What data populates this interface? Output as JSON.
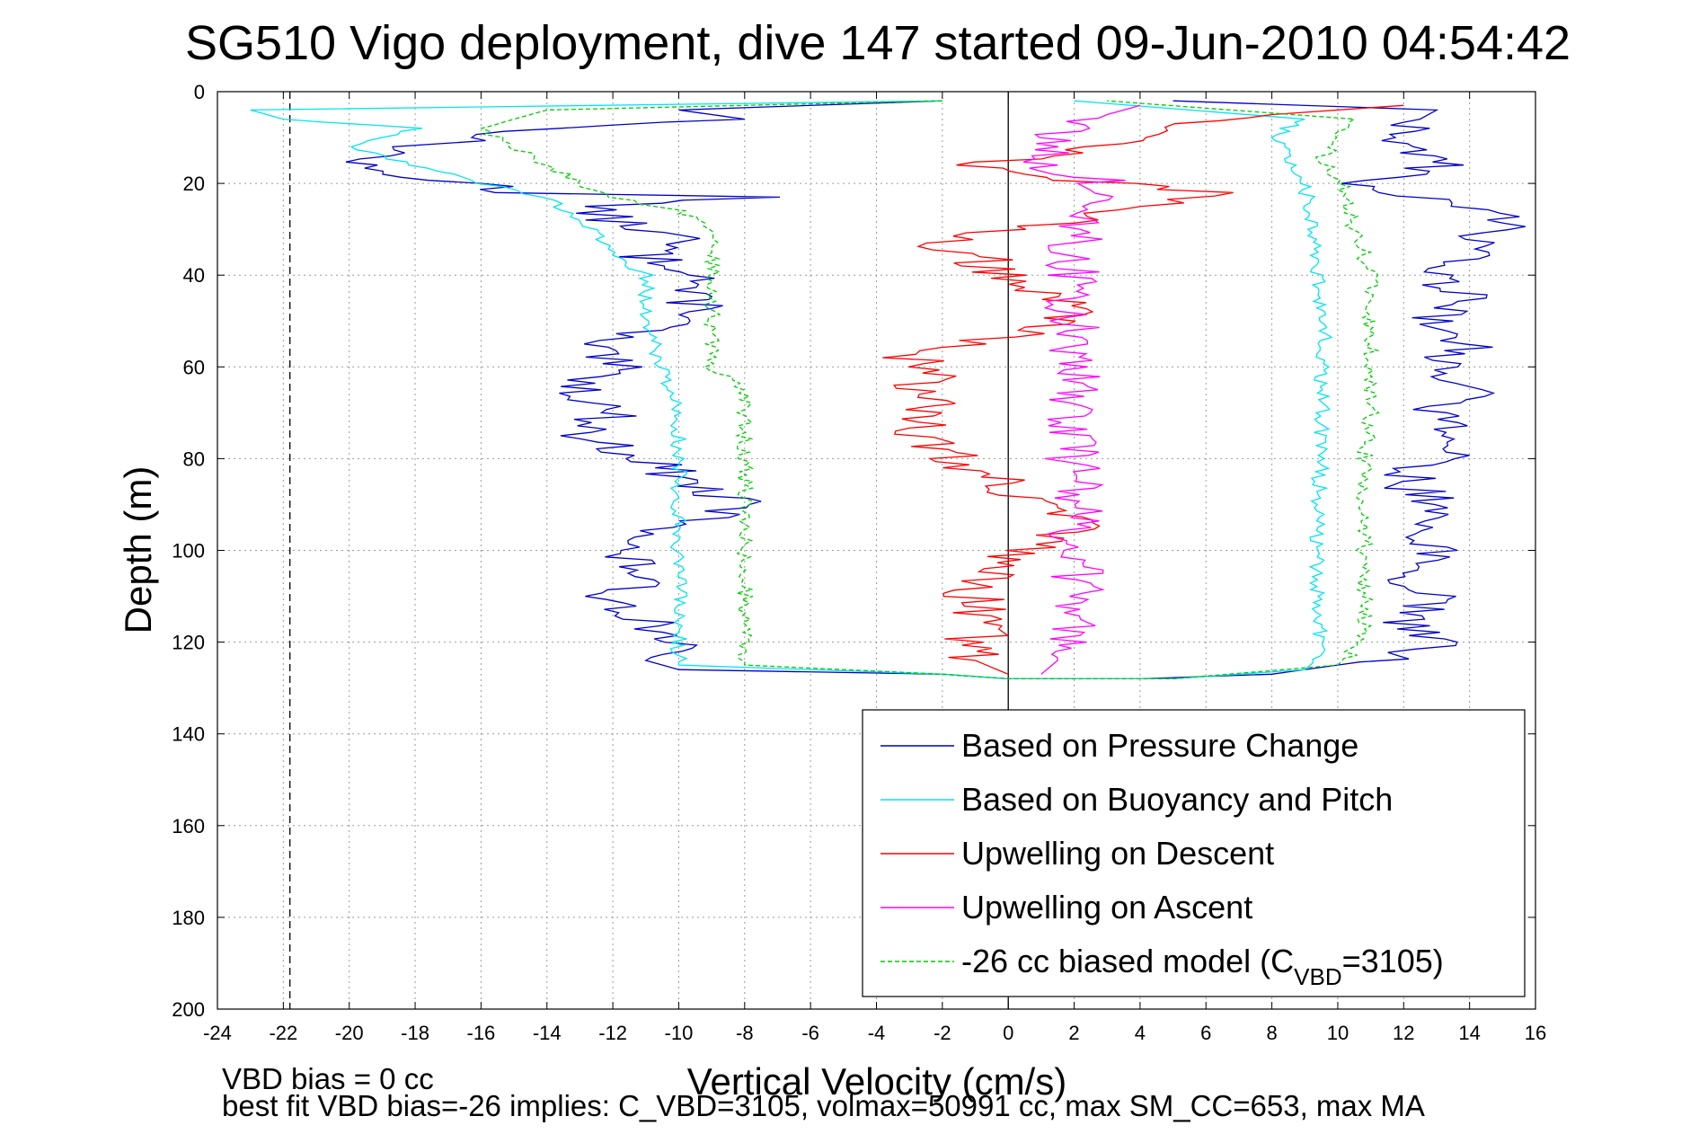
{
  "chart_data": {
    "type": "line",
    "title": "SG510 Vigo deployment, dive 147 started 09-Jun-2010 04:54:42",
    "xlabel": "Vertical Velocity (cm/s)",
    "ylabel": "Depth (m)",
    "xlim": [
      -24,
      16
    ],
    "ylim": [
      0,
      200
    ],
    "y_reversed": true,
    "xticks": [
      "-24",
      "-22",
      "-20",
      "-18",
      "-16",
      "-14",
      "-12",
      "-10",
      "-8",
      "-6",
      "-4",
      "-2",
      "0",
      "2",
      "4",
      "6",
      "8",
      "10",
      "12",
      "14",
      "16"
    ],
    "yticks": [
      "0",
      "20",
      "40",
      "60",
      "80",
      "100",
      "120",
      "140",
      "160",
      "180",
      "200"
    ],
    "grid": true,
    "legend_position": "bottom-right",
    "reference_lines": [
      {
        "orientation": "vertical",
        "x": 0,
        "color": "#000000",
        "style": "solid"
      },
      {
        "orientation": "vertical",
        "x": -21.8,
        "color": "#000000",
        "style": "dashed"
      }
    ],
    "series": [
      {
        "name": "Based on Pressure Change",
        "color": "#0000cc",
        "style": "solid",
        "points": [
          [
            -2,
            2
          ],
          [
            -10,
            4
          ],
          [
            -8,
            6
          ],
          [
            -14,
            8
          ],
          [
            -18,
            12
          ],
          [
            -20,
            16
          ],
          [
            -19,
            18
          ],
          [
            -16,
            20
          ],
          [
            -15,
            22
          ],
          [
            -7,
            23
          ],
          [
            -13,
            25
          ],
          [
            -12,
            28
          ],
          [
            -10,
            32
          ],
          [
            -11,
            36
          ],
          [
            -9,
            40
          ],
          [
            -10,
            44
          ],
          [
            -9,
            48
          ],
          [
            -11,
            52
          ],
          [
            -13,
            55
          ],
          [
            -12,
            60
          ],
          [
            -13,
            65
          ],
          [
            -12,
            70
          ],
          [
            -13,
            75
          ],
          [
            -11,
            80
          ],
          [
            -10,
            84
          ],
          [
            -9,
            88
          ],
          [
            -8,
            90
          ],
          [
            -10,
            95
          ],
          [
            -12,
            100
          ],
          [
            -11,
            105
          ],
          [
            -12,
            110
          ],
          [
            -11,
            115
          ],
          [
            -10,
            120
          ],
          [
            -11,
            124
          ],
          [
            -10,
            126
          ],
          [
            -2,
            127
          ],
          [
            0,
            128
          ],
          [
            4,
            128
          ],
          [
            8,
            127
          ],
          [
            12,
            123
          ],
          [
            13,
            120
          ],
          [
            12,
            115
          ],
          [
            13,
            110
          ],
          [
            12,
            105
          ],
          [
            13,
            100
          ],
          [
            12,
            95
          ],
          [
            13,
            90
          ],
          [
            12,
            85
          ],
          [
            13,
            80
          ],
          [
            14,
            75
          ],
          [
            13,
            70
          ],
          [
            14,
            65
          ],
          [
            13,
            60
          ],
          [
            14,
            55
          ],
          [
            13,
            50
          ],
          [
            14,
            45
          ],
          [
            13,
            40
          ],
          [
            14,
            35
          ],
          [
            15,
            28
          ],
          [
            14,
            25
          ],
          [
            12,
            22
          ],
          [
            11,
            20
          ],
          [
            13,
            16
          ],
          [
            12,
            12
          ],
          [
            12,
            8
          ],
          [
            13,
            4
          ],
          [
            5,
            2
          ]
        ]
      },
      {
        "name": "Based on Buoyancy and Pitch",
        "color": "#00e5ee",
        "style": "solid",
        "points": [
          [
            -2,
            2
          ],
          [
            -23,
            4
          ],
          [
            -22,
            6
          ],
          [
            -18,
            8
          ],
          [
            -20,
            12
          ],
          [
            -18,
            16
          ],
          [
            -16,
            20
          ],
          [
            -14,
            23
          ],
          [
            -13,
            28
          ],
          [
            -12,
            35
          ],
          [
            -11,
            40
          ],
          [
            -11,
            45
          ],
          [
            -11,
            50
          ],
          [
            -10.5,
            60
          ],
          [
            -10,
            70
          ],
          [
            -10,
            80
          ],
          [
            -10,
            90
          ],
          [
            -10,
            100
          ],
          [
            -10,
            110
          ],
          [
            -10,
            120
          ],
          [
            -10,
            125
          ],
          [
            -2,
            127
          ],
          [
            0,
            128
          ],
          [
            5,
            128
          ],
          [
            9,
            126
          ],
          [
            9.5,
            123
          ],
          [
            9.4,
            110
          ],
          [
            9.4,
            100
          ],
          [
            9.4,
            90
          ],
          [
            9.5,
            80
          ],
          [
            9.5,
            70
          ],
          [
            9.5,
            60
          ],
          [
            9.6,
            50
          ],
          [
            9.4,
            40
          ],
          [
            9.2,
            30
          ],
          [
            9,
            20
          ],
          [
            8.5,
            14
          ],
          [
            8,
            10
          ],
          [
            9,
            6
          ],
          [
            2,
            2
          ]
        ]
      },
      {
        "name": "Upwelling on Descent",
        "color": "#ff0000",
        "style": "solid",
        "points": [
          [
            12,
            3
          ],
          [
            8,
            5
          ],
          [
            6,
            7
          ],
          [
            4,
            10
          ],
          [
            3,
            12
          ],
          [
            1,
            14
          ],
          [
            -1,
            16
          ],
          [
            1,
            18
          ],
          [
            3,
            20
          ],
          [
            6,
            22
          ],
          [
            4,
            25
          ],
          [
            2,
            28
          ],
          [
            0,
            30
          ],
          [
            -2,
            33
          ],
          [
            -1,
            36
          ],
          [
            0,
            40
          ],
          [
            1,
            44
          ],
          [
            2,
            48
          ],
          [
            1,
            52
          ],
          [
            -1,
            55
          ],
          [
            -3,
            58
          ],
          [
            -2,
            62
          ],
          [
            -3,
            66
          ],
          [
            -2,
            70
          ],
          [
            -3,
            74
          ],
          [
            -2,
            78
          ],
          [
            -1,
            82
          ],
          [
            0,
            86
          ],
          [
            1,
            90
          ],
          [
            2,
            94
          ],
          [
            1,
            98
          ],
          [
            0,
            102
          ],
          [
            -1,
            106
          ],
          [
            -1,
            110
          ],
          [
            -1,
            115
          ],
          [
            -1,
            120
          ],
          [
            -1,
            124
          ],
          [
            0,
            127
          ]
        ]
      },
      {
        "name": "Upwelling on Ascent",
        "color": "#ff00ff",
        "style": "solid",
        "points": [
          [
            1,
            127
          ],
          [
            1.5,
            124
          ],
          [
            2,
            120
          ],
          [
            2,
            115
          ],
          [
            2,
            110
          ],
          [
            2,
            105
          ],
          [
            2,
            100
          ],
          [
            2,
            95
          ],
          [
            2,
            90
          ],
          [
            2,
            85
          ],
          [
            2,
            80
          ],
          [
            2,
            75
          ],
          [
            2,
            70
          ],
          [
            2,
            65
          ],
          [
            2,
            60
          ],
          [
            2,
            55
          ],
          [
            2,
            50
          ],
          [
            2,
            45
          ],
          [
            2,
            40
          ],
          [
            2,
            35
          ],
          [
            2,
            30
          ],
          [
            2,
            25
          ],
          [
            3,
            20
          ],
          [
            1,
            16
          ],
          [
            1,
            12
          ],
          [
            2,
            8
          ],
          [
            3,
            5
          ],
          [
            4,
            3
          ]
        ]
      },
      {
        "name": "-26 cc biased model (C_VBD=3105)",
        "color": "#00cc00",
        "style": "dashed",
        "points": [
          [
            -2,
            2
          ],
          [
            -14,
            4
          ],
          [
            -15,
            6
          ],
          [
            -16,
            8
          ],
          [
            -15,
            12
          ],
          [
            -14,
            16
          ],
          [
            -13,
            20
          ],
          [
            -12,
            23
          ],
          [
            -10,
            26
          ],
          [
            -9,
            30
          ],
          [
            -9,
            35
          ],
          [
            -9,
            40
          ],
          [
            -9,
            45
          ],
          [
            -9,
            50
          ],
          [
            -9,
            55
          ],
          [
            -9,
            60
          ],
          [
            -8,
            65
          ],
          [
            -8,
            70
          ],
          [
            -8,
            80
          ],
          [
            -8,
            90
          ],
          [
            -8,
            100
          ],
          [
            -8,
            110
          ],
          [
            -8,
            120
          ],
          [
            -8,
            125
          ],
          [
            -2,
            127
          ],
          [
            0,
            128
          ],
          [
            5,
            128
          ],
          [
            10,
            125
          ],
          [
            10.8,
            120
          ],
          [
            10.8,
            110
          ],
          [
            10.8,
            100
          ],
          [
            10.8,
            90
          ],
          [
            10.8,
            80
          ],
          [
            11,
            70
          ],
          [
            11,
            60
          ],
          [
            11,
            50
          ],
          [
            11,
            40
          ],
          [
            10.5,
            30
          ],
          [
            10.2,
            20
          ],
          [
            9.5,
            15
          ],
          [
            10,
            10
          ],
          [
            10.5,
            6
          ],
          [
            3,
            2
          ]
        ]
      }
    ],
    "legend": [
      {
        "label": "Based on Pressure Change",
        "color": "#0000cc",
        "style": "solid"
      },
      {
        "label": "Based on Buoyancy and Pitch",
        "color": "#00e5ee",
        "style": "solid"
      },
      {
        "label": "Upwelling on Descent",
        "color": "#ff0000",
        "style": "solid"
      },
      {
        "label": "Upwelling on Ascent",
        "color": "#ff00ff",
        "style": "solid"
      },
      {
        "label_main": "-26 cc biased model (C",
        "label_sub": "VBD",
        "label_tail": "=3105)",
        "color": "#00cc00",
        "style": "dashed"
      }
    ],
    "footnotes": [
      "VBD bias = 0 cc",
      "best fit VBD bias=-26 implies: C_VBD=3105, volmax=50991 cc, max SM_CC=653, max MA"
    ]
  }
}
